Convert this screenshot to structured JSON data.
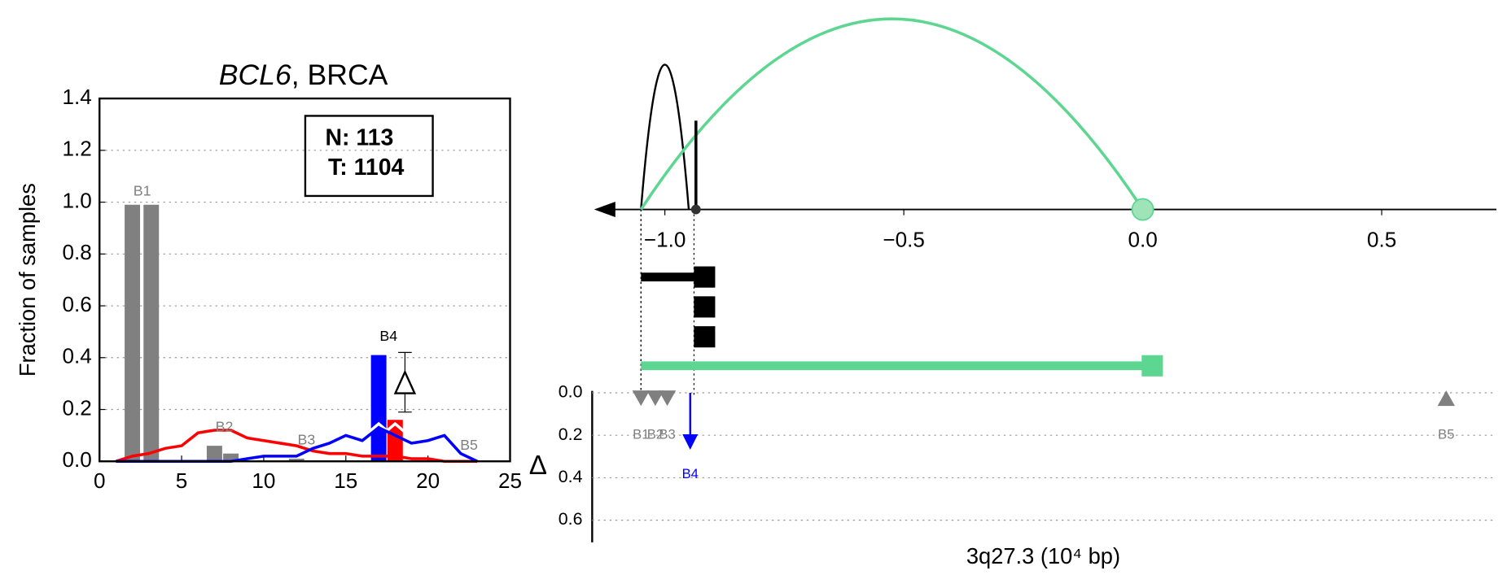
{
  "chart_data": [
    {
      "type": "bar",
      "title_italic": "BCL6",
      "title": ", BRCA",
      "ylabel": "Fraction of samples",
      "xlim": [
        0,
        25
      ],
      "xticks": [
        0,
        5,
        10,
        15,
        20,
        25
      ],
      "ylim": [
        0,
        1.4
      ],
      "yticks": [
        {
          "value": 0,
          "label": "0.0"
        },
        0.2,
        0.4,
        0.6,
        0.8,
        {
          "value": 1,
          "label": "1.0"
        },
        1.2,
        1.4
      ],
      "grid": true,
      "bars": [
        {
          "color": "#808080",
          "x": [
            2,
            3.15,
            7,
            8,
            12
          ],
          "values": [
            0.99,
            0.99,
            0.06,
            0.03,
            0.01
          ]
        },
        {
          "color": "#0000ff",
          "x": [
            17
          ],
          "values": [
            0.41
          ]
        },
        {
          "color": "#ff0000",
          "x": [
            18
          ],
          "values": [
            0.16
          ]
        }
      ],
      "lines": {
        "x": [
          1,
          2,
          3,
          4,
          5,
          6,
          7,
          8,
          9,
          10,
          11,
          12,
          13,
          14,
          15,
          16,
          17,
          18,
          19,
          20,
          21,
          22,
          23
        ],
        "series": [
          {
            "color": "#ff0000",
            "values": [
              0,
              0.02,
              0.03,
              0.05,
              0.06,
              0.11,
              0.12,
              0.12,
              0.09,
              0.08,
              0.07,
              0.06,
              0.04,
              0.03,
              0.03,
              0.02,
              0.02,
              0.02,
              0.01,
              0.01,
              0,
              0,
              0
            ]
          },
          {
            "color": "#0000ff",
            "values": [
              0,
              0,
              0,
              0,
              0,
              0,
              0,
              0,
              0.01,
              0.02,
              0.02,
              0.02,
              0.05,
              0.07,
              0.1,
              0.08,
              0.13,
              0.1,
              0.07,
              0.08,
              0.1,
              0.03,
              0
            ]
          }
        ]
      },
      "annotations": [
        {
          "text": "B1",
          "x": 2.6,
          "y": 1.04,
          "color": "#808080"
        },
        {
          "text": "B2",
          "x": 7.6,
          "y": 0.13,
          "color": "#808080"
        },
        {
          "text": "B3",
          "x": 12.6,
          "y": 0.08,
          "color": "#808080"
        },
        {
          "text": "B4",
          "x": 17.6,
          "y": 0.48,
          "color": "#000000"
        },
        {
          "text": "B5",
          "x": 22.5,
          "y": 0.06,
          "color": "#808080"
        }
      ],
      "box": [
        "N: 113",
        "T: 1104"
      ],
      "marker": {
        "x": 18.6,
        "value": 0.3,
        "yerr": [
          0.11,
          0.12
        ]
      }
    },
    {
      "type": "genome",
      "xlim": [
        -1.14,
        0.74
      ],
      "xticks": [
        {
          "value": -1,
          "label": "−1.0"
        },
        {
          "value": -0.5,
          "label": "−0.5"
        },
        {
          "value": 0,
          "label": "0.0"
        },
        0.5
      ],
      "xlabel": "3q27.3 (10⁴ bp)",
      "arcs": [
        {
          "start": -1.05,
          "end": -0.95,
          "color": "#000000"
        },
        {
          "start": -1.05,
          "end": 0,
          "color": "#5cd690"
        }
      ],
      "breakpoint": -0.935,
      "tracks": [
        {
          "start": -1.05,
          "end": -0.917,
          "color": "#000000",
          "rows": 3
        },
        {
          "start": -1.05,
          "end": 0.02,
          "color": "#5cd690",
          "rows": 1
        }
      ],
      "ylim": [
        0,
        0.7
      ],
      "yticks": [
        {
          "value": 0,
          "label": "0.0"
        },
        0.2,
        0.4,
        0.6
      ],
      "ylabel": "Δ",
      "points": [
        {
          "label": "B1",
          "x": -1.05,
          "value": 0.03,
          "color": "#808080",
          "shape": "down"
        },
        {
          "label": "B2",
          "x": -1.02,
          "value": 0.03,
          "color": "#808080",
          "shape": "down"
        },
        {
          "label": "B3",
          "x": -0.995,
          "value": 0.03,
          "color": "#808080",
          "shape": "down"
        },
        {
          "label": "B4",
          "x": -0.947,
          "value": 0.25,
          "color": "#0000ff",
          "shape": "arrow"
        },
        {
          "label": "B5",
          "x": 0.635,
          "value": 0.03,
          "color": "#808080",
          "shape": "up"
        }
      ]
    }
  ]
}
